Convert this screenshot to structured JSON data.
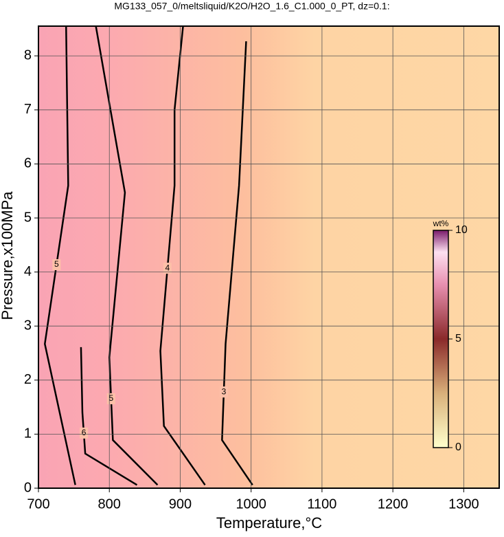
{
  "chart_data": {
    "type": "contour",
    "title": "MG133_057_0/meltsliquid/K2O/H2O_1.6_C1.000_0_PT, dz=0.1:",
    "xlabel": "Temperature,°C",
    "ylabel": "Pressure,x100MPa",
    "xlim": [
      700,
      1350
    ],
    "ylim": [
      0,
      8.55
    ],
    "xticks": [
      700,
      800,
      900,
      1000,
      1100,
      1200,
      1300
    ],
    "yticks": [
      0,
      1,
      2,
      3,
      4,
      5,
      6,
      7,
      8
    ],
    "grid": true,
    "contours": [
      {
        "level": 5,
        "x": [
          739,
          742,
          709,
          752
        ],
        "y": [
          8.55,
          5.6,
          2.67,
          0.06
        ]
      },
      {
        "level": 6,
        "x": [
          760,
          762,
          766,
          839
        ],
        "y": [
          2.61,
          1.4,
          0.64,
          0.06
        ]
      },
      {
        "level": 5,
        "x": [
          781,
          822,
          800,
          805,
          868
        ],
        "y": [
          8.55,
          5.47,
          2.42,
          0.89,
          0.06
        ]
      },
      {
        "level": 4,
        "x": [
          904,
          892,
          892,
          872,
          877,
          935
        ],
        "y": [
          8.55,
          7.0,
          5.6,
          2.54,
          1.15,
          0.06
        ]
      },
      {
        "level": 3,
        "x": [
          993,
          983,
          964,
          959,
          1002
        ],
        "y": [
          8.27,
          5.6,
          2.67,
          0.89,
          0.06
        ]
      }
    ],
    "colorbar": {
      "label": "wt%",
      "lim": [
        0,
        10
      ],
      "ticks": [
        0,
        5,
        10
      ]
    }
  }
}
